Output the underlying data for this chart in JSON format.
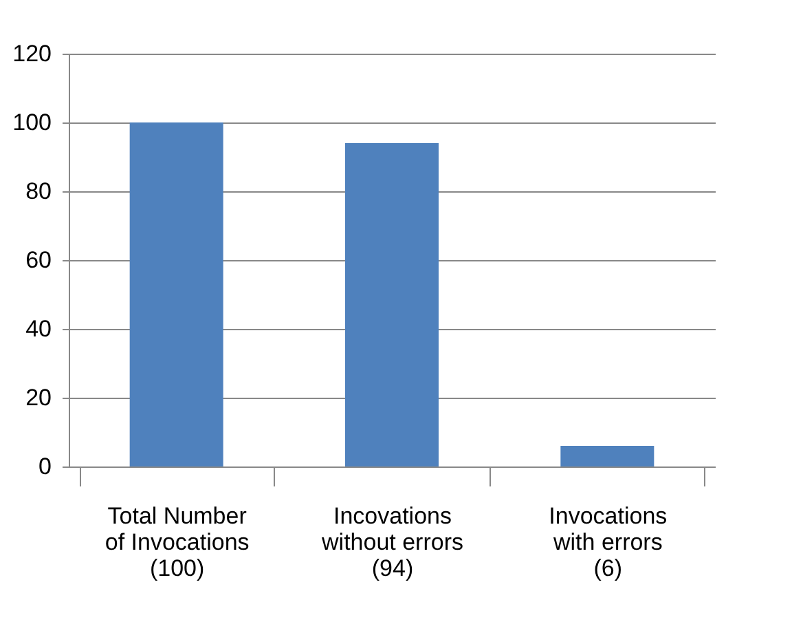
{
  "chart_data": {
    "type": "bar",
    "categories": [
      "Total Number of Invocations (100)",
      "Incovations without errors (94)",
      "Invocations with errors (6)"
    ],
    "values": [
      100,
      94,
      6
    ],
    "color": "#4f81bd",
    "ylim": [
      0,
      120
    ],
    "yticks": [
      0,
      20,
      40,
      60,
      80,
      100,
      120
    ],
    "grid": "y"
  }
}
